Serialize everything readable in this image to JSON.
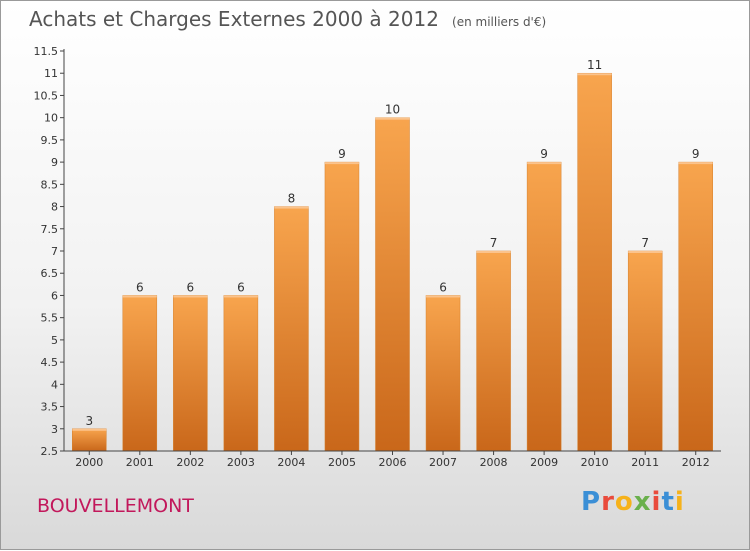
{
  "chart_data": {
    "type": "bar",
    "title": "Achats et Charges Externes 2000 à 2012",
    "unit": "(en milliers d'€)",
    "categories": [
      "2000",
      "2001",
      "2002",
      "2003",
      "2004",
      "2005",
      "2006",
      "2007",
      "2008",
      "2009",
      "2010",
      "2011",
      "2012"
    ],
    "values": [
      3,
      6,
      6,
      6,
      8,
      9,
      10,
      6,
      7,
      9,
      11,
      7,
      9
    ],
    "ylim": [
      2.5,
      11.5
    ],
    "yticks": [
      "2.5",
      "3",
      "3.5",
      "4",
      "4.5",
      "5",
      "5.5",
      "6",
      "6.5",
      "7",
      "7.5",
      "8",
      "8.5",
      "9",
      "9.5",
      "10",
      "10.5",
      "11",
      "11.5"
    ],
    "grid": false,
    "bar_color": "#f0922f"
  },
  "commune": "BOUVELLEMONT",
  "logo": {
    "letters": [
      "P",
      "r",
      "o",
      "x",
      "i",
      "t",
      "i"
    ],
    "colors": [
      "#3b8fd6",
      "#e94b3c",
      "#f6b21b",
      "#6ab04c",
      "#e94b3c",
      "#3b8fd6",
      "#f6b21b"
    ]
  }
}
